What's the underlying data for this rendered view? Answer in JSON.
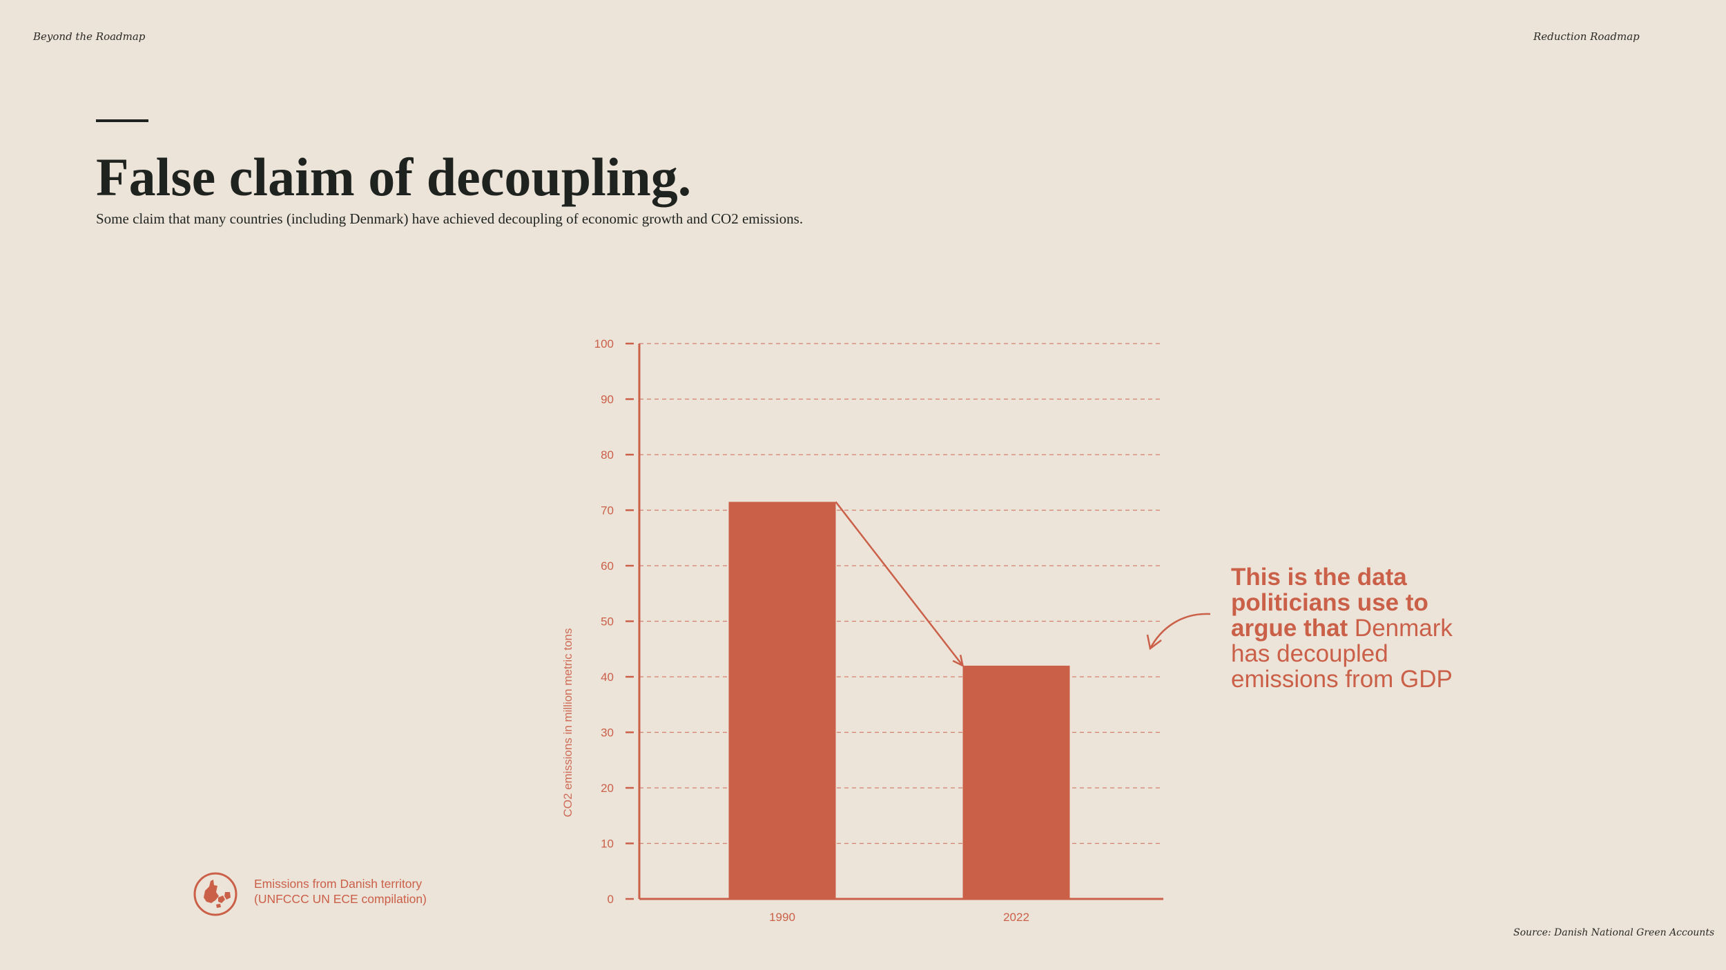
{
  "header": {
    "left": "Beyond the Roadmap",
    "right": "Reduction Roadmap"
  },
  "title": "False claim of decoupling.",
  "subtitle": "Some claim that many countries (including Denmark) have achieved decoupling of economic growth and CO2 emissions.",
  "callout": {
    "bold": "This is the data politicians use to argue that",
    "regular": " Denmark has decoupled emissions from GDP"
  },
  "legend": {
    "icon": "denmark-map-icon",
    "line1": "Emissions from Danish territory",
    "line2": "(UNFCCC UN ECE compilation)"
  },
  "source": "Source: Danish National Green Accounts",
  "colors": {
    "accent": "#cb6049",
    "background": "#ece3d9",
    "text": "#1f231f"
  },
  "chart_data": {
    "type": "bar",
    "categories": [
      "1990",
      "2022"
    ],
    "values": [
      71.5,
      42
    ],
    "ylabel": "CO2 emissions in million metric tons",
    "ylim": [
      0,
      100
    ],
    "yticks": [
      "0",
      "10",
      "20",
      "30",
      "40",
      "50",
      "60",
      "70",
      "80",
      "90",
      "100"
    ],
    "grid": true,
    "annotation": "arrow from top of 1990 bar to top of 2022 bar"
  }
}
